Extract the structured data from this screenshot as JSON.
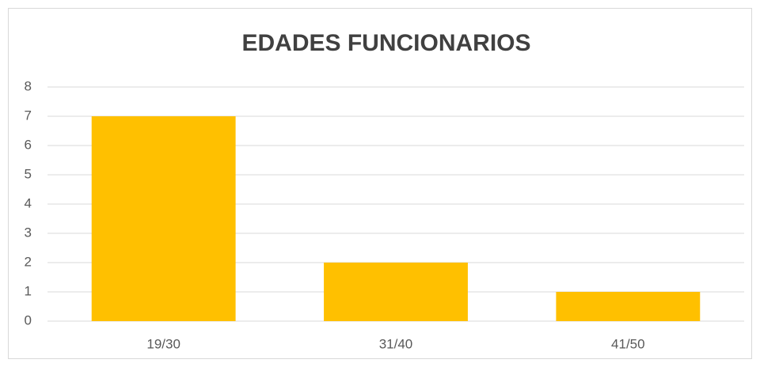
{
  "chart_data": {
    "type": "bar",
    "title": "EDADES FUNCIONARIOS",
    "categories": [
      "19/30",
      "31/40",
      "41/50"
    ],
    "values": [
      7,
      2,
      1
    ],
    "color": "#ffc000",
    "ylim": [
      0,
      8
    ],
    "yticks": [
      0,
      1,
      2,
      3,
      4,
      5,
      6,
      7,
      8
    ],
    "grid": true
  }
}
